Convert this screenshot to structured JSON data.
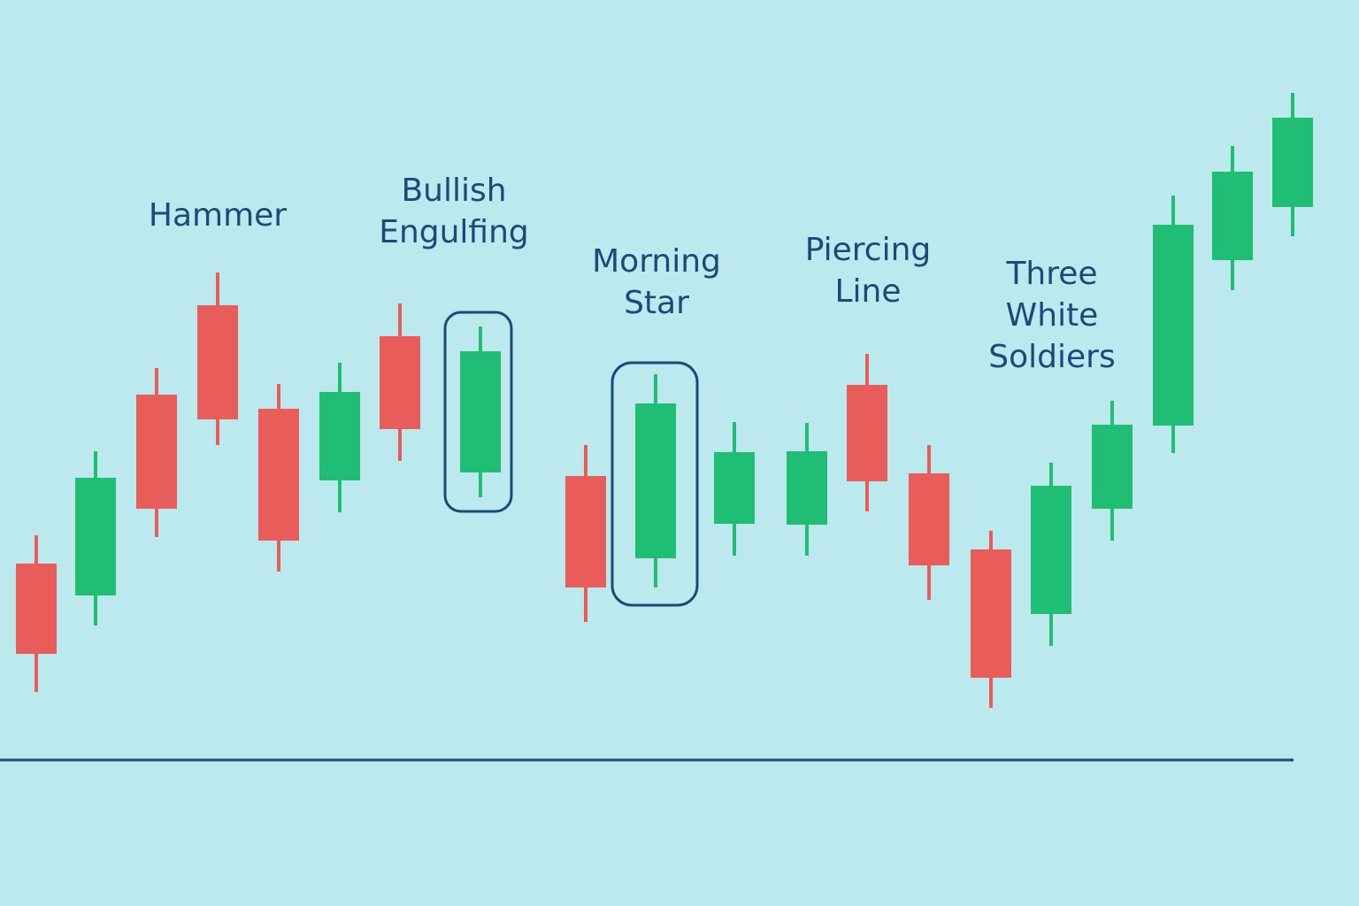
{
  "chart_data": {
    "type": "candlestick",
    "categories": [
      null,
      null,
      null,
      null,
      null,
      null,
      null,
      null,
      null,
      null,
      null,
      null,
      null,
      null,
      null,
      null,
      null,
      null,
      null,
      null
    ],
    "open": [
      223,
      187,
      414,
      515,
      398,
      317,
      480,
      326,
      322,
      229,
      268,
      267,
      425,
      325,
      239,
      166,
      285,
      379,
      566,
      626
    ],
    "high": [
      255,
      350,
      444,
      552,
      426,
      450,
      517,
      491,
      357,
      437,
      383,
      382,
      460,
      357,
      260,
      337,
      407,
      639,
      695,
      755
    ],
    "low": [
      78,
      153,
      253,
      357,
      214,
      281,
      339,
      298,
      157,
      196,
      232,
      232,
      282,
      182,
      60,
      130,
      249,
      348,
      532,
      593
    ],
    "close": [
      121,
      320,
      285,
      386,
      249,
      417,
      375,
      463,
      196,
      404,
      349,
      350,
      316,
      221,
      94,
      311,
      380,
      606,
      666,
      727
    ],
    "up_color": "#1fbe74",
    "down_color": "#e85c5a",
    "ylim": [
      0,
      860
    ],
    "annotations": [
      {
        "lines": [
          "Hammer"
        ]
      },
      {
        "lines": [
          "Bullish",
          "Engulfing"
        ]
      },
      {
        "lines": [
          "Morning",
          "Star"
        ]
      },
      {
        "lines": [
          "Piercing",
          "Line"
        ]
      },
      {
        "lines": [
          "Three",
          "White",
          "Soldiers"
        ]
      }
    ]
  }
}
